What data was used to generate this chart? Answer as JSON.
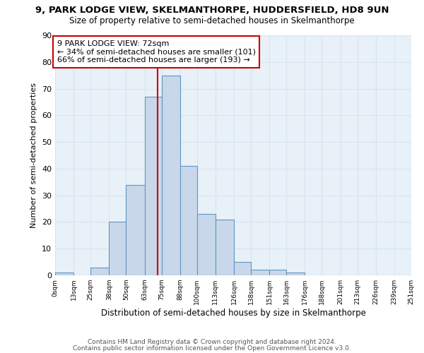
{
  "title": "9, PARK LODGE VIEW, SKELMANTHORPE, HUDDERSFIELD, HD8 9UN",
  "subtitle": "Size of property relative to semi-detached houses in Skelmanthorpe",
  "xlabel": "Distribution of semi-detached houses by size in Skelmanthorpe",
  "ylabel": "Number of semi-detached properties",
  "footer_line1": "Contains HM Land Registry data © Crown copyright and database right 2024.",
  "footer_line2": "Contains public sector information licensed under the Open Government Licence v3.0.",
  "bin_labels": [
    "0sqm",
    "13sqm",
    "25sqm",
    "38sqm",
    "50sqm",
    "63sqm",
    "75sqm",
    "88sqm",
    "100sqm",
    "113sqm",
    "126sqm",
    "138sqm",
    "151sqm",
    "163sqm",
    "176sqm",
    "188sqm",
    "201sqm",
    "213sqm",
    "226sqm",
    "239sqm",
    "251sqm"
  ],
  "bin_edges": [
    0,
    13,
    25,
    38,
    50,
    63,
    75,
    88,
    100,
    113,
    126,
    138,
    151,
    163,
    176,
    188,
    201,
    213,
    226,
    239,
    251
  ],
  "bar_heights": [
    1,
    0,
    3,
    20,
    34,
    67,
    75,
    41,
    23,
    21,
    5,
    2,
    2,
    1,
    0,
    0,
    0,
    0,
    0,
    0
  ],
  "bar_color": "#c8d8ea",
  "bar_edge_color": "#6096c0",
  "grid_color": "#d8e4f0",
  "bg_color": "#e8f0f8",
  "property_size": 72,
  "vline_color": "#cc0000",
  "annotation_text": "9 PARK LODGE VIEW: 72sqm\n← 34% of semi-detached houses are smaller (101)\n66% of semi-detached houses are larger (193) →",
  "annotation_box_color": "#cc0000",
  "ylim": [
    0,
    90
  ],
  "yticks": [
    0,
    10,
    20,
    30,
    40,
    50,
    60,
    70,
    80,
    90
  ]
}
